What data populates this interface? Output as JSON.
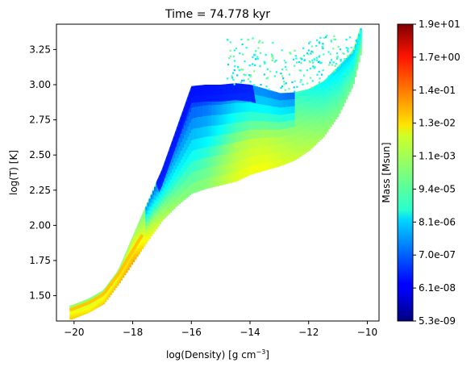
{
  "chart_data": {
    "type": "heatmap",
    "title": "Time = 74.778 kyr",
    "xlabel_main": "log(Density) [g cm",
    "xlabel_exp": "−3",
    "xlabel_end": "]",
    "ylabel": "log(T) [K]",
    "xlim": [
      -20.6,
      -9.6
    ],
    "ylim": [
      1.32,
      3.43
    ],
    "xticks": [
      -20,
      -18,
      -16,
      -14,
      -12,
      -10
    ],
    "xtick_labels": [
      "−20",
      "−18",
      "−16",
      "−14",
      "−12",
      "−10"
    ],
    "yticks": [
      1.5,
      1.75,
      2.0,
      2.25,
      2.5,
      2.75,
      3.0,
      3.25
    ],
    "ytick_labels": [
      "1.50",
      "1.75",
      "2.00",
      "2.25",
      "2.50",
      "2.75",
      "3.00",
      "3.25"
    ],
    "grid": false,
    "colormap": "jet",
    "colorbar": {
      "label": "Mass [Msun]",
      "tick_labels": [
        "5.3e-09",
        "6.1e-08",
        "7.0e-07",
        "8.1e-06",
        "9.4e-05",
        "1.1e-03",
        "1.3e-02",
        "1.4e-01",
        "1.7e+00",
        "1.9e+01"
      ]
    },
    "distribution_ridge": [
      {
        "x": -20.1,
        "y": 1.38,
        "c": 0.62
      },
      {
        "x": -19.5,
        "y": 1.43,
        "c": 0.6
      },
      {
        "x": -19.0,
        "y": 1.49,
        "c": 0.62
      },
      {
        "x": -18.5,
        "y": 1.63,
        "c": 0.64
      },
      {
        "x": -18.0,
        "y": 1.8,
        "c": 0.66
      },
      {
        "x": -17.5,
        "y": 1.97,
        "c": 0.57
      },
      {
        "x": -17.0,
        "y": 2.13,
        "c": 0.5
      },
      {
        "x": -16.5,
        "y": 2.25,
        "c": 0.47
      },
      {
        "x": -16.0,
        "y": 2.37,
        "c": 0.45
      },
      {
        "x": -15.5,
        "y": 2.44,
        "c": 0.46
      },
      {
        "x": -15.0,
        "y": 2.5,
        "c": 0.5
      },
      {
        "x": -14.5,
        "y": 2.56,
        "c": 0.54
      },
      {
        "x": -14.0,
        "y": 2.6,
        "c": 0.56
      },
      {
        "x": -13.5,
        "y": 2.62,
        "c": 0.56
      },
      {
        "x": -13.0,
        "y": 2.64,
        "c": 0.54
      },
      {
        "x": -12.5,
        "y": 2.67,
        "c": 0.52
      },
      {
        "x": -12.0,
        "y": 2.72,
        "c": 0.5
      },
      {
        "x": -11.5,
        "y": 2.8,
        "c": 0.47
      },
      {
        "x": -11.0,
        "y": 2.93,
        "c": 0.44
      },
      {
        "x": -10.5,
        "y": 3.1,
        "c": 0.43
      },
      {
        "x": -10.2,
        "y": 3.33,
        "c": 0.45
      }
    ]
  }
}
